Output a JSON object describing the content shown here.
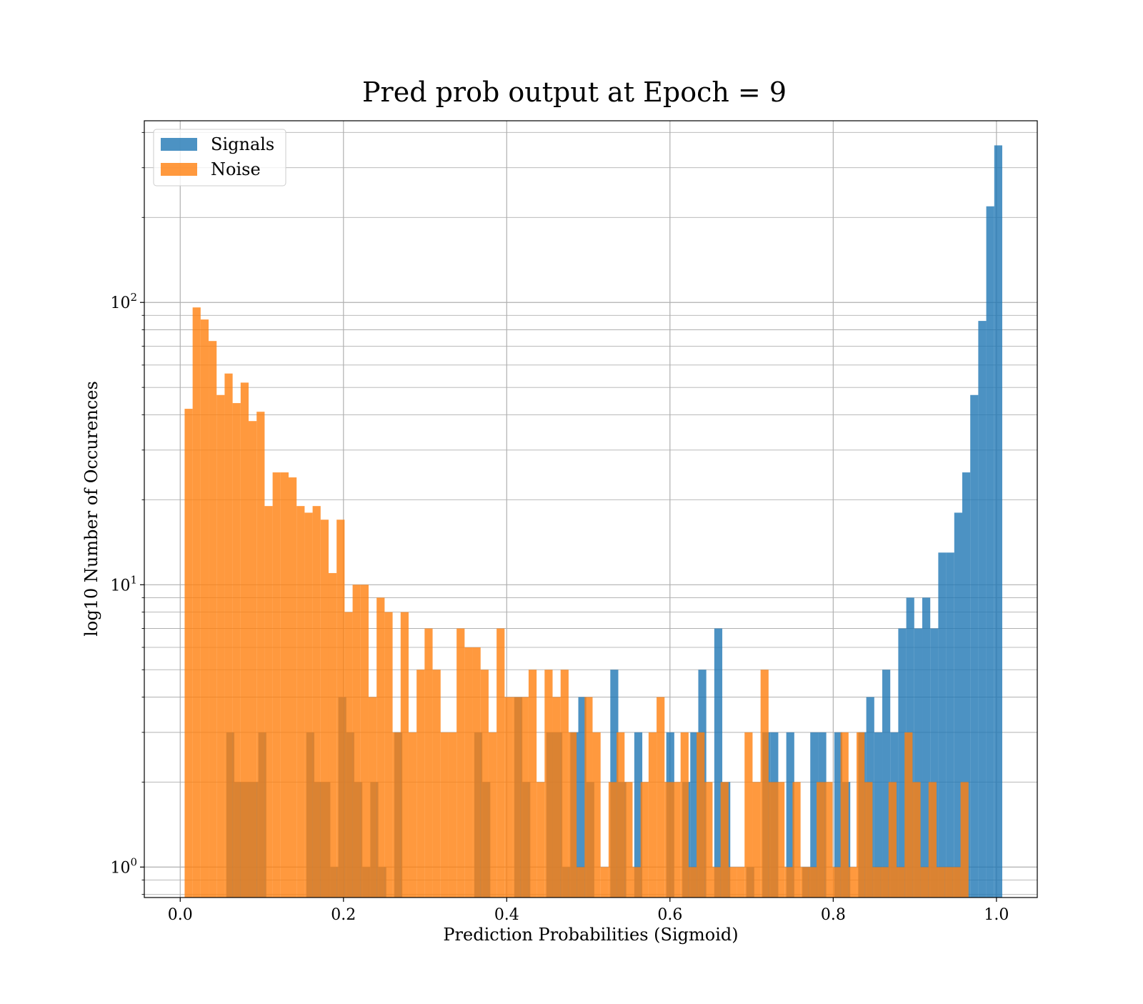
{
  "chart_data": {
    "type": "bar",
    "title": "Pred prob output at Epoch = 9",
    "xlabel": "Prediction Probabilities (Sigmoid)",
    "ylabel": "log10 Number of Occurences",
    "xlim": [
      -0.044,
      1.05
    ],
    "ylim": [
      0.78,
      440
    ],
    "y_scale": "log",
    "grid": true,
    "legend_position": "top-left",
    "x_ticks": [
      {
        "value": 0.0,
        "label": "0.0"
      },
      {
        "value": 0.2,
        "label": "0.2"
      },
      {
        "value": 0.4,
        "label": "0.4"
      },
      {
        "value": 0.6,
        "label": "0.6"
      },
      {
        "value": 0.8,
        "label": "0.8"
      },
      {
        "value": 1.0,
        "label": "1.0"
      }
    ],
    "y_ticks": [
      {
        "value": 1,
        "base": "10",
        "exp": "0"
      },
      {
        "value": 10,
        "base": "10",
        "exp": "1"
      },
      {
        "value": 100,
        "base": "10",
        "exp": "2"
      }
    ],
    "series": [
      {
        "name": "Signals",
        "color": "#1f77b4",
        "opacity": 0.8,
        "bins": [
          [
            0.0565,
            0.0663,
            3
          ],
          [
            0.0663,
            0.0957,
            2
          ],
          [
            0.0957,
            0.1055,
            3
          ],
          [
            0.1545,
            0.1643,
            3
          ],
          [
            0.1643,
            0.1839,
            2
          ],
          [
            0.1839,
            0.1937,
            1
          ],
          [
            0.1937,
            0.2035,
            4
          ],
          [
            0.2035,
            0.2133,
            3
          ],
          [
            0.2133,
            0.2231,
            2
          ],
          [
            0.2231,
            0.2329,
            1
          ],
          [
            0.2329,
            0.2427,
            2
          ],
          [
            0.2427,
            0.2525,
            1
          ],
          [
            0.2623,
            0.2721,
            3
          ],
          [
            0.3603,
            0.3701,
            3
          ],
          [
            0.3701,
            0.3799,
            2
          ],
          [
            0.4093,
            0.4191,
            4
          ],
          [
            0.4191,
            0.4289,
            2
          ],
          [
            0.4485,
            0.4583,
            3
          ],
          [
            0.4583,
            0.4681,
            3
          ],
          [
            0.4681,
            0.4779,
            1
          ],
          [
            0.4779,
            0.4877,
            3
          ],
          [
            0.4877,
            0.4975,
            4
          ],
          [
            0.4975,
            0.5073,
            2
          ],
          [
            0.5269,
            0.5367,
            5
          ],
          [
            0.5367,
            0.5465,
            2
          ],
          [
            0.5563,
            0.5661,
            3
          ],
          [
            0.5955,
            0.6053,
            3
          ],
          [
            0.6151,
            0.6249,
            2
          ],
          [
            0.6249,
            0.6347,
            3
          ],
          [
            0.6347,
            0.6445,
            5
          ],
          [
            0.6543,
            0.6641,
            7
          ],
          [
            0.6641,
            0.6739,
            2
          ],
          [
            0.6935,
            0.7033,
            1
          ],
          [
            0.7131,
            0.7229,
            3
          ],
          [
            0.7229,
            0.7327,
            3
          ],
          [
            0.7425,
            0.7523,
            3
          ],
          [
            0.7621,
            0.7719,
            1
          ],
          [
            0.7719,
            0.7817,
            3
          ],
          [
            0.7817,
            0.7915,
            3
          ],
          [
            0.8013,
            0.8111,
            3
          ],
          [
            0.8111,
            0.8209,
            2
          ],
          [
            0.8307,
            0.8405,
            3
          ],
          [
            0.8405,
            0.8503,
            4
          ],
          [
            0.8503,
            0.8601,
            3
          ],
          [
            0.8601,
            0.8699,
            5
          ],
          [
            0.8699,
            0.8797,
            3
          ],
          [
            0.8797,
            0.8895,
            7
          ],
          [
            0.8895,
            0.8993,
            9
          ],
          [
            0.8993,
            0.9091,
            7
          ],
          [
            0.9091,
            0.9189,
            9
          ],
          [
            0.9189,
            0.9287,
            7
          ],
          [
            0.9287,
            0.9385,
            13
          ],
          [
            0.9385,
            0.9483,
            13
          ],
          [
            0.9483,
            0.9581,
            18
          ],
          [
            0.9581,
            0.9679,
            25
          ],
          [
            0.9679,
            0.9777,
            47
          ],
          [
            0.9777,
            0.9875,
            86
          ],
          [
            0.9875,
            0.9973,
            219
          ],
          [
            0.9973,
            1.0071,
            360
          ]
        ]
      },
      {
        "name": "Noise",
        "color": "#ff7f0e",
        "opacity": 0.8,
        "bins": [
          [
            0.0054,
            0.0152,
            42
          ],
          [
            0.0152,
            0.025,
            96
          ],
          [
            0.025,
            0.0348,
            87
          ],
          [
            0.0348,
            0.0446,
            73
          ],
          [
            0.0446,
            0.0544,
            47
          ],
          [
            0.0544,
            0.0642,
            56
          ],
          [
            0.0642,
            0.074,
            44
          ],
          [
            0.074,
            0.0838,
            52
          ],
          [
            0.0838,
            0.0936,
            38
          ],
          [
            0.0936,
            0.1034,
            41
          ],
          [
            0.1034,
            0.1132,
            19
          ],
          [
            0.1132,
            0.123,
            25
          ],
          [
            0.123,
            0.1328,
            25
          ],
          [
            0.1328,
            0.1426,
            24
          ],
          [
            0.1426,
            0.1524,
            19
          ],
          [
            0.1524,
            0.1622,
            18
          ],
          [
            0.1622,
            0.172,
            19
          ],
          [
            0.172,
            0.1818,
            17
          ],
          [
            0.1818,
            0.1916,
            11
          ],
          [
            0.1916,
            0.2014,
            17
          ],
          [
            0.2014,
            0.2112,
            8
          ],
          [
            0.2112,
            0.221,
            10
          ],
          [
            0.221,
            0.2308,
            10
          ],
          [
            0.2308,
            0.2406,
            4
          ],
          [
            0.2406,
            0.2504,
            9
          ],
          [
            0.2504,
            0.2602,
            8
          ],
          [
            0.2602,
            0.27,
            3
          ],
          [
            0.27,
            0.2798,
            8
          ],
          [
            0.2798,
            0.2896,
            3
          ],
          [
            0.2896,
            0.2994,
            5
          ],
          [
            0.2994,
            0.3092,
            7
          ],
          [
            0.3092,
            0.319,
            5
          ],
          [
            0.319,
            0.3288,
            3
          ],
          [
            0.3288,
            0.3386,
            3
          ],
          [
            0.3386,
            0.3484,
            7
          ],
          [
            0.3484,
            0.3582,
            6
          ],
          [
            0.3582,
            0.368,
            6
          ],
          [
            0.368,
            0.3778,
            5
          ],
          [
            0.3778,
            0.3876,
            3
          ],
          [
            0.3876,
            0.3974,
            7
          ],
          [
            0.3974,
            0.4072,
            4
          ],
          [
            0.4072,
            0.417,
            4
          ],
          [
            0.417,
            0.4268,
            4
          ],
          [
            0.4268,
            0.4366,
            5
          ],
          [
            0.4366,
            0.4464,
            2
          ],
          [
            0.4464,
            0.4562,
            5
          ],
          [
            0.4562,
            0.466,
            4
          ],
          [
            0.466,
            0.4758,
            5
          ],
          [
            0.4758,
            0.4856,
            3
          ],
          [
            0.4856,
            0.4954,
            1
          ],
          [
            0.4954,
            0.5052,
            4
          ],
          [
            0.5052,
            0.515,
            3
          ],
          [
            0.515,
            0.5248,
            1
          ],
          [
            0.5248,
            0.5346,
            2
          ],
          [
            0.5346,
            0.5444,
            3
          ],
          [
            0.5444,
            0.5542,
            2
          ],
          [
            0.5542,
            0.564,
            1
          ],
          [
            0.564,
            0.5738,
            2
          ],
          [
            0.5738,
            0.5836,
            3
          ],
          [
            0.5836,
            0.5934,
            4
          ],
          [
            0.5934,
            0.6032,
            2
          ],
          [
            0.6032,
            0.613,
            2
          ],
          [
            0.613,
            0.6228,
            3
          ],
          [
            0.6228,
            0.6326,
            1
          ],
          [
            0.6326,
            0.6424,
            3
          ],
          [
            0.6424,
            0.6522,
            2
          ],
          [
            0.6522,
            0.662,
            1
          ],
          [
            0.662,
            0.6718,
            2
          ],
          [
            0.6718,
            0.6816,
            1
          ],
          [
            0.6816,
            0.6914,
            1
          ],
          [
            0.6914,
            0.7012,
            3
          ],
          [
            0.7012,
            0.711,
            2
          ],
          [
            0.711,
            0.7208,
            5
          ],
          [
            0.7208,
            0.7306,
            2
          ],
          [
            0.7306,
            0.7404,
            2
          ],
          [
            0.7404,
            0.7502,
            1
          ],
          [
            0.7502,
            0.76,
            2
          ],
          [
            0.76,
            0.7698,
            1
          ],
          [
            0.7698,
            0.7796,
            1
          ],
          [
            0.7796,
            0.7894,
            2
          ],
          [
            0.7894,
            0.7992,
            2
          ],
          [
            0.7992,
            0.809,
            1
          ],
          [
            0.809,
            0.8188,
            3
          ],
          [
            0.8188,
            0.8286,
            1
          ],
          [
            0.8286,
            0.8384,
            3
          ],
          [
            0.8384,
            0.8482,
            2
          ],
          [
            0.8482,
            0.858,
            1
          ],
          [
            0.858,
            0.8678,
            1
          ],
          [
            0.8678,
            0.8776,
            2
          ],
          [
            0.8776,
            0.8874,
            1
          ],
          [
            0.8874,
            0.8972,
            3
          ],
          [
            0.8972,
            0.907,
            2
          ],
          [
            0.907,
            0.9168,
            1
          ],
          [
            0.9168,
            0.9266,
            2
          ],
          [
            0.9266,
            0.9364,
            1
          ],
          [
            0.9364,
            0.9462,
            1
          ],
          [
            0.9462,
            0.956,
            1
          ],
          [
            0.956,
            0.9658,
            2
          ]
        ]
      }
    ]
  }
}
